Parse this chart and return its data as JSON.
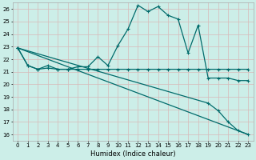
{
  "xlabel": "Humidex (Indice chaleur)",
  "xlim": [
    -0.5,
    23.5
  ],
  "ylim": [
    15.5,
    26.5
  ],
  "yticks": [
    16,
    17,
    18,
    19,
    20,
    21,
    22,
    23,
    24,
    25,
    26
  ],
  "xticks": [
    0,
    1,
    2,
    3,
    4,
    5,
    6,
    7,
    8,
    9,
    10,
    11,
    12,
    13,
    14,
    15,
    16,
    17,
    18,
    19,
    20,
    21,
    22,
    23
  ],
  "bg_color": "#cceee8",
  "grid_color": "#d8b8b8",
  "line_color": "#006b6b",
  "line1_x": [
    0,
    1,
    2,
    3,
    4,
    5,
    6,
    7,
    8,
    9,
    10,
    11,
    12,
    13,
    14,
    15,
    16,
    17,
    18,
    19,
    20,
    21,
    22,
    23
  ],
  "line1_y": [
    22.9,
    21.5,
    21.2,
    21.5,
    21.2,
    21.2,
    21.4,
    21.4,
    22.2,
    21.5,
    23.1,
    24.4,
    26.3,
    25.8,
    26.2,
    25.5,
    25.2,
    22.5,
    24.7,
    20.5,
    20.5,
    20.5,
    20.3,
    20.3
  ],
  "line2_x": [
    0,
    1,
    2,
    3,
    4,
    5,
    6,
    7,
    8,
    9,
    10,
    11,
    12,
    13,
    14,
    15,
    16,
    17,
    18,
    19,
    20,
    21,
    22,
    23
  ],
  "line2_y": [
    22.9,
    21.5,
    21.2,
    21.3,
    21.2,
    21.2,
    21.2,
    21.2,
    21.2,
    21.2,
    21.2,
    21.2,
    21.2,
    21.2,
    21.2,
    21.2,
    21.2,
    21.2,
    21.2,
    21.2,
    21.2,
    21.2,
    21.2,
    21.2
  ],
  "line3_x": [
    0,
    23
  ],
  "line3_y": [
    22.9,
    16.0
  ],
  "line4_x": [
    0,
    19,
    20,
    21,
    22,
    23
  ],
  "line4_y": [
    22.9,
    18.5,
    17.9,
    17.0,
    16.3,
    16.0
  ],
  "marker": "+",
  "marker_size": 3,
  "linewidth": 0.9
}
